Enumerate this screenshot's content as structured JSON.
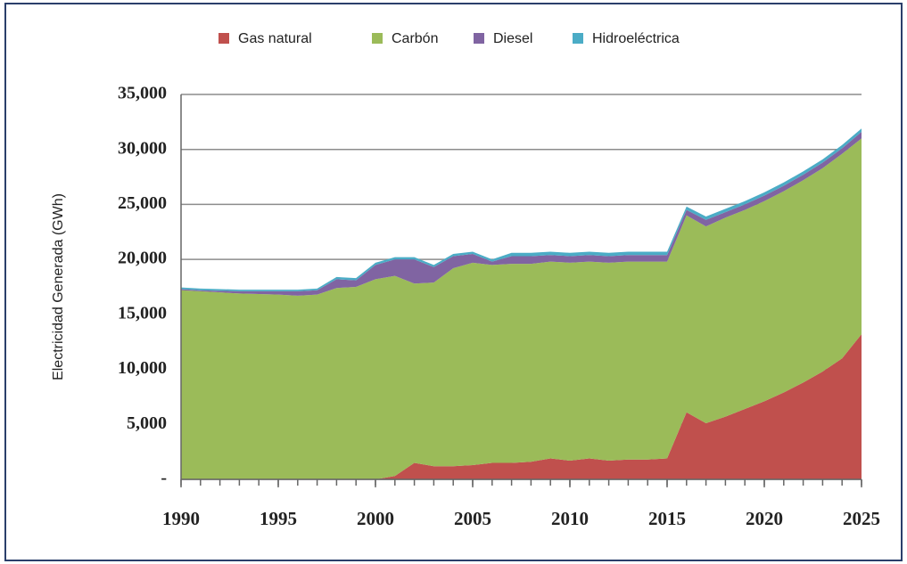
{
  "chart_data": {
    "type": "stacked_area",
    "y_label": "Electricidad Generada (GWh)",
    "x": [
      1990,
      1991,
      1992,
      1993,
      1994,
      1995,
      1996,
      1997,
      1998,
      1999,
      2000,
      2001,
      2002,
      2003,
      2004,
      2005,
      2006,
      2007,
      2008,
      2009,
      2010,
      2011,
      2012,
      2013,
      2014,
      2015,
      2016,
      2017,
      2018,
      2019,
      2020,
      2021,
      2022,
      2023,
      2024,
      2025
    ],
    "series": [
      {
        "name": "Gas natural",
        "color": "#c0504d",
        "values": [
          0,
          0,
          0,
          0,
          0,
          0,
          0,
          0,
          0,
          0,
          0,
          300,
          1500,
          1200,
          1200,
          1300,
          1500,
          1500,
          1600,
          1900,
          1700,
          1900,
          1700,
          1800,
          1800,
          1900,
          6100,
          5100,
          5700,
          6400,
          7100,
          7900,
          8800,
          9800,
          11000,
          13200
        ]
      },
      {
        "name": "Carbón",
        "color": "#9bbb59",
        "values": [
          17200,
          17100,
          17000,
          16900,
          16850,
          16800,
          16700,
          16800,
          17400,
          17500,
          18200,
          18200,
          16300,
          16700,
          18000,
          18400,
          18000,
          18100,
          18000,
          17900,
          18000,
          17900,
          18000,
          18000,
          18000,
          17900,
          17900,
          17900,
          18100,
          18100,
          18200,
          18300,
          18400,
          18500,
          18600,
          17800
        ]
      },
      {
        "name": "Diesel",
        "color": "#8064a2",
        "values": [
          100,
          100,
          150,
          200,
          250,
          300,
          400,
          400,
          800,
          600,
          1300,
          1500,
          2200,
          1400,
          1100,
          800,
          300,
          700,
          700,
          600,
          600,
          600,
          600,
          600,
          600,
          600,
          500,
          600,
          500,
          500,
          500,
          500,
          500,
          500,
          500,
          600
        ]
      },
      {
        "name": "Hidroeléctrica",
        "color": "#4bacc6",
        "values": [
          150,
          150,
          150,
          150,
          150,
          150,
          150,
          150,
          200,
          200,
          200,
          200,
          200,
          200,
          200,
          200,
          200,
          300,
          300,
          300,
          300,
          300,
          300,
          300,
          300,
          300,
          300,
          300,
          300,
          300,
          300,
          300,
          300,
          300,
          300,
          300
        ]
      }
    ],
    "xlim": [
      1990,
      2025
    ],
    "xticks": [
      1990,
      1995,
      2000,
      2005,
      2010,
      2015,
      2020,
      2025
    ],
    "ylim": [
      0,
      35000
    ],
    "yticks": [
      {
        "value": 0,
        "label": "-"
      },
      {
        "value": 5000,
        "label": "5,000"
      },
      {
        "value": 10000,
        "label": "10,000"
      },
      {
        "value": 15000,
        "label": "15,000"
      },
      {
        "value": 20000,
        "label": "20,000"
      },
      {
        "value": 25000,
        "label": "25,000"
      },
      {
        "value": 30000,
        "label": "30,000"
      },
      {
        "value": 35000,
        "label": "35,000"
      }
    ],
    "grid": true,
    "legend": "top"
  }
}
